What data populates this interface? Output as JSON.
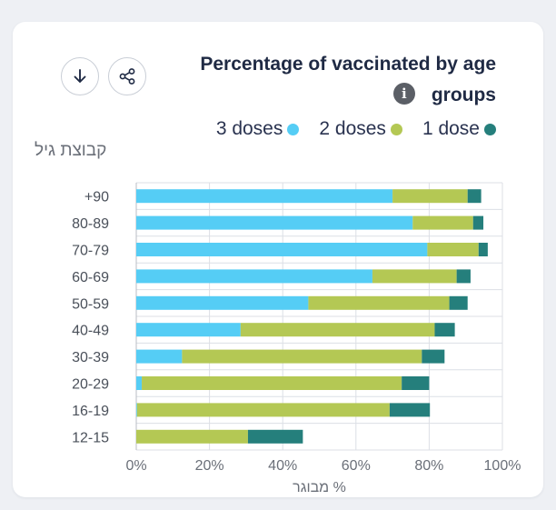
{
  "toolbar": {
    "download_icon": "download-arrow-icon",
    "share_icon": "share-icon"
  },
  "header": {
    "title_line1": "Percentage of vaccinated by age",
    "title_line2": "groups",
    "info_icon": "info-icon",
    "info_glyph": "i"
  },
  "colors": {
    "dose3": "#55cdf5",
    "dose2": "#b4c854",
    "dose1": "#257f7c",
    "text": "#1f2a44",
    "grid": "#dcdfe5"
  },
  "chart_data": {
    "type": "bar",
    "orientation": "horizontal",
    "stacked": true,
    "title": "Percentage of vaccinated by age groups",
    "ylabel": "קבוצת גיל",
    "xlabel": "% מבוגר",
    "xlim": [
      0,
      100
    ],
    "xticks": [
      "0%",
      "20%",
      "40%",
      "60%",
      "80%",
      "100%"
    ],
    "categories": [
      "+90",
      "80-89",
      "70-79",
      "60-69",
      "50-59",
      "40-49",
      "30-39",
      "20-29",
      "16-19",
      "12-15"
    ],
    "legend_position": "top",
    "legend": [
      "3 doses",
      "2 doses",
      "1 dose"
    ],
    "series": [
      {
        "name": "3 doses",
        "color": "#55cdf5",
        "values": [
          70.0,
          75.5,
          79.5,
          64.5,
          47.0,
          28.5,
          12.5,
          1.5,
          0.2,
          0.0
        ]
      },
      {
        "name": "2 doses",
        "color": "#b4c854",
        "values": [
          20.5,
          16.5,
          14.0,
          23.0,
          38.5,
          53.0,
          65.5,
          71.0,
          69.0,
          30.5
        ]
      },
      {
        "name": "1 dose",
        "color": "#257f7c",
        "values": [
          3.7,
          2.8,
          2.5,
          3.8,
          5.0,
          5.5,
          6.2,
          7.5,
          11.0,
          15.0
        ]
      }
    ],
    "grid": true
  }
}
